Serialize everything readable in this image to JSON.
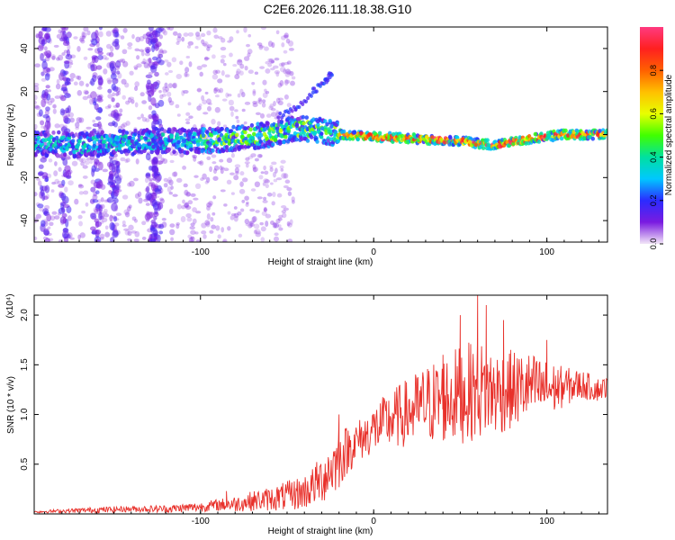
{
  "title": "C2E6.2026.111.18.38.G10",
  "colors": {
    "axis": "#000000",
    "snr_line": "#e8302a",
    "spec_cold": "#7a1be0",
    "spec_faint": "#d9c8f5"
  },
  "chart_data": [
    {
      "type": "heatmap",
      "name": "spectrogram",
      "xlabel": "Height of straight line (km)",
      "ylabel": "Frequency (Hz)",
      "xlim": [
        -196,
        135
      ],
      "ylim": [
        -50,
        50
      ],
      "x_ticks": [
        -100,
        0,
        100
      ],
      "x_tick_labels": [
        "-100",
        "0",
        "100"
      ],
      "y_ticks": [
        -40,
        -20,
        0,
        20,
        40
      ],
      "y_tick_labels": [
        "-40",
        "-20",
        "0",
        "20",
        "40"
      ],
      "grid": false,
      "track_description": "Signal band centred near 0 Hz, widening and noisier at negative heights, narrow and high amplitude from about -25 km to 135 km; rising branch between -50 and -25 km reaching about 30 Hz",
      "track_center_points": [
        {
          "x": -196,
          "y": -4
        },
        {
          "x": -170,
          "y": -5
        },
        {
          "x": -150,
          "y": -4
        },
        {
          "x": -125,
          "y": -3
        },
        {
          "x": -100,
          "y": -3
        },
        {
          "x": -80,
          "y": -2
        },
        {
          "x": -60,
          "y": 0
        },
        {
          "x": -45,
          "y": 3
        },
        {
          "x": -30,
          "y": 2
        },
        {
          "x": -20,
          "y": 0
        },
        {
          "x": 0,
          "y": -1
        },
        {
          "x": 25,
          "y": -2
        },
        {
          "x": 50,
          "y": -3
        },
        {
          "x": 70,
          "y": -5
        },
        {
          "x": 90,
          "y": -2
        },
        {
          "x": 110,
          "y": 0
        },
        {
          "x": 135,
          "y": 0
        }
      ],
      "branch_points": [
        {
          "x": -55,
          "y": 8
        },
        {
          "x": -45,
          "y": 12
        },
        {
          "x": -35,
          "y": 20
        },
        {
          "x": -28,
          "y": 25
        },
        {
          "x": -24,
          "y": 29
        }
      ],
      "colorbar": {
        "label": "Normalized spectral amplitude",
        "range": [
          0,
          1
        ],
        "ticks": [
          0.0,
          0.2,
          0.4,
          0.6,
          0.8
        ],
        "tick_labels": [
          "0.0",
          "0.2",
          "0.4",
          "0.6",
          "0.8"
        ],
        "colormap": [
          "#f2e6f7",
          "#7a1be0",
          "#2b2bff",
          "#00c8ff",
          "#00e0a0",
          "#40ff00",
          "#e8ff00",
          "#ffc000",
          "#ff6000",
          "#ff2020",
          "#ff3a80"
        ]
      }
    },
    {
      "type": "line",
      "name": "snr",
      "xlabel": "Height of straight line (km)",
      "ylabel": "SNR (10 * v/v)",
      "y_scale_label": "(x10⁴)",
      "xlim": [
        -196,
        135
      ],
      "ylim": [
        0,
        2.2
      ],
      "x_ticks": [
        -100,
        0,
        100
      ],
      "x_tick_labels": [
        "-100",
        "0",
        "100"
      ],
      "y_ticks": [
        0.5,
        1.0,
        1.5,
        2.0
      ],
      "y_tick_labels": [
        "0.5",
        "1.0",
        "1.5",
        "2.0"
      ],
      "grid": false,
      "series": [
        {
          "name": "SNR",
          "x": [
            -196,
            -180,
            -160,
            -140,
            -120,
            -100,
            -90,
            -80,
            -70,
            -60,
            -50,
            -40,
            -35,
            -30,
            -25,
            -20,
            -15,
            -10,
            -5,
            0,
            10,
            20,
            30,
            40,
            50,
            60,
            70,
            80,
            90,
            100,
            110,
            120,
            130,
            135
          ],
          "y": [
            0.02,
            0.03,
            0.04,
            0.05,
            0.05,
            0.07,
            0.09,
            0.1,
            0.13,
            0.15,
            0.18,
            0.22,
            0.28,
            0.35,
            0.45,
            0.55,
            0.65,
            0.72,
            0.78,
            0.85,
            0.95,
            1.02,
            1.1,
            1.15,
            1.2,
            1.25,
            1.22,
            1.25,
            1.28,
            1.25,
            1.28,
            1.3,
            1.25,
            1.28
          ],
          "spread": [
            0.01,
            0.02,
            0.03,
            0.03,
            0.04,
            0.05,
            0.06,
            0.08,
            0.1,
            0.12,
            0.15,
            0.18,
            0.2,
            0.25,
            0.3,
            0.3,
            0.25,
            0.22,
            0.22,
            0.25,
            0.3,
            0.35,
            0.4,
            0.45,
            0.5,
            0.5,
            0.45,
            0.4,
            0.35,
            0.3,
            0.2,
            0.15,
            0.12,
            0.1
          ]
        }
      ],
      "peaks": [
        {
          "x": -85,
          "y": 0.23
        },
        {
          "x": -20,
          "y": 1.0
        },
        {
          "x": 40,
          "y": 1.6
        },
        {
          "x": 50,
          "y": 2.0
        },
        {
          "x": 60,
          "y": 2.2
        },
        {
          "x": 65,
          "y": 2.1
        },
        {
          "x": 75,
          "y": 1.95
        },
        {
          "x": 100,
          "y": 1.75
        }
      ]
    }
  ]
}
